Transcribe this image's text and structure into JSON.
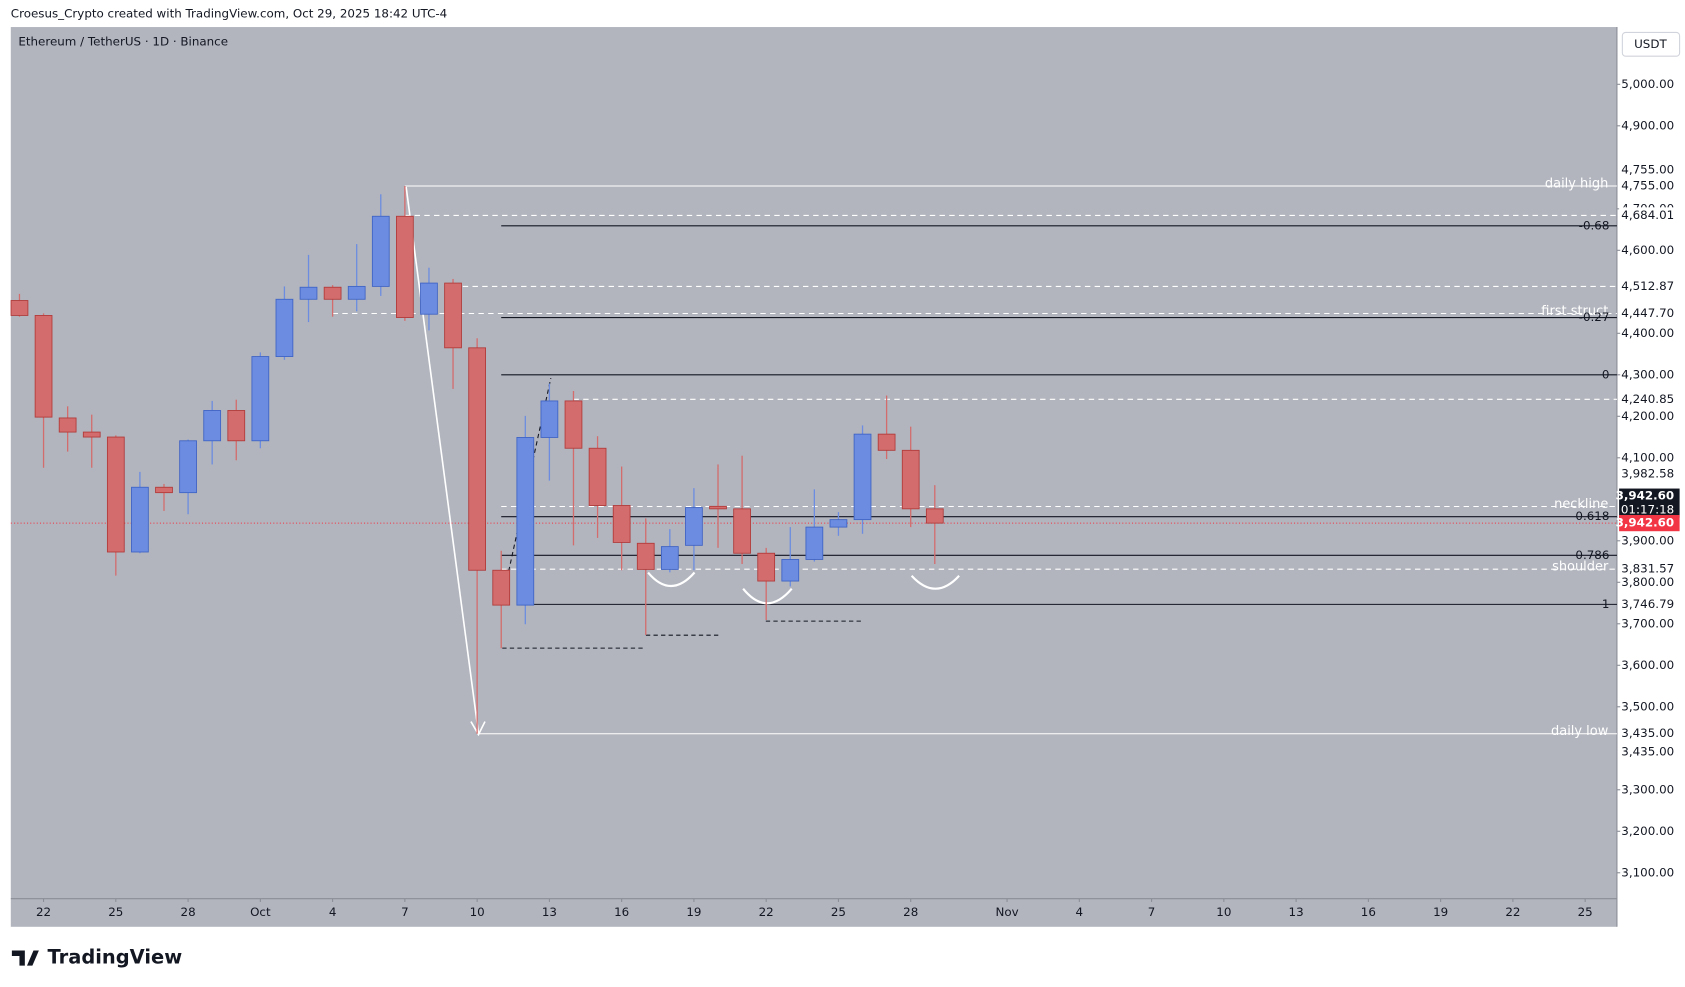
{
  "header": {
    "credit": "Croesus_Crypto created with TradingView.com, Oct 29, 2025 18:42 UTC-4",
    "symbol": "Ethereum / TetherUS · 1D · Binance",
    "currency": "USDT",
    "logo": "TradingView"
  },
  "chart_data": {
    "type": "candlestick",
    "up_color": "#6b8ce0",
    "down_color": "#d36c6c",
    "background": "#b2b5be",
    "candles": {
      "open": [
        4479,
        4443,
        4196,
        4162,
        4150,
        3873,
        4029,
        4016,
        4141,
        4214,
        4141,
        4344,
        4482,
        4511,
        4482,
        4513,
        4682,
        4446,
        4521,
        4365,
        3829,
        3745,
        4149,
        4237,
        4123,
        3985,
        3894,
        3831,
        3889,
        3983,
        3977,
        3870,
        3803,
        3855,
        3933,
        3951,
        4157,
        4118,
        3977
      ],
      "high": [
        4495,
        4448,
        4224,
        4204,
        4154,
        4066,
        4037,
        4144,
        4237,
        4240,
        4354,
        4513,
        4589,
        4516,
        4615,
        4735,
        4755,
        4558,
        4531,
        4388,
        3876,
        4201,
        4279,
        4261,
        4152,
        4079,
        3954,
        3928,
        4027,
        4084,
        4105,
        3883,
        3933,
        4024,
        3969,
        4178,
        4250,
        4175,
        4034
      ],
      "low": [
        4440,
        4076,
        4115,
        4076,
        3816,
        3870,
        3972,
        3964,
        4084,
        4094,
        4123,
        4336,
        4427,
        4440,
        4453,
        4490,
        4430,
        4407,
        4266,
        3435,
        3641,
        3699,
        4045,
        3889,
        3907,
        3829,
        3673,
        3824,
        3829,
        3883,
        3844,
        3709,
        3790,
        3850,
        3912,
        3917,
        4097,
        3933,
        3844
      ],
      "close": [
        4443,
        4198,
        4162,
        4150,
        3873,
        4029,
        4016,
        4141,
        4214,
        4141,
        4344,
        4482,
        4511,
        4482,
        4513,
        4682,
        4438,
        4521,
        4365,
        3829,
        3745,
        4149,
        4237,
        4123,
        3985,
        3896,
        3831,
        3886,
        3980,
        3977,
        3870,
        3803,
        3855,
        3933,
        3951,
        4157,
        4118,
        3977,
        3942.6
      ]
    },
    "xlim": [
      -0.36,
      66.32
    ],
    "xticks": [
      {
        "value": 1,
        "label": "22"
      },
      {
        "value": 4,
        "label": "25"
      },
      {
        "value": 7,
        "label": "28"
      },
      {
        "value": 10,
        "label": "Oct"
      },
      {
        "value": 13,
        "label": "4"
      },
      {
        "value": 16,
        "label": "7"
      },
      {
        "value": 19,
        "label": "10"
      },
      {
        "value": 22,
        "label": "13"
      },
      {
        "value": 25,
        "label": "16"
      },
      {
        "value": 28,
        "label": "19"
      },
      {
        "value": 31,
        "label": "22"
      },
      {
        "value": 34,
        "label": "25"
      },
      {
        "value": 37,
        "label": "28"
      },
      {
        "value": 41,
        "label": "Nov"
      },
      {
        "value": 44,
        "label": "4"
      },
      {
        "value": 47,
        "label": "7"
      },
      {
        "value": 50,
        "label": "10"
      },
      {
        "value": 53,
        "label": "13"
      },
      {
        "value": 56,
        "label": "16"
      },
      {
        "value": 59,
        "label": "19"
      },
      {
        "value": 62,
        "label": "22"
      },
      {
        "value": 65,
        "label": "25"
      }
    ],
    "ylim": [
      3037.5,
      5138
    ],
    "yticks": [
      {
        "value": 5000,
        "label": "5,000.00"
      },
      {
        "value": 4900,
        "label": "4,900.00"
      },
      {
        "value": 4700,
        "label": "4,700.00"
      },
      {
        "value": 4600,
        "label": "4,600.00"
      },
      {
        "value": 4400,
        "label": "4,400.00"
      },
      {
        "value": 4300,
        "label": "4,300.00"
      },
      {
        "value": 4200,
        "label": "4,200.00"
      },
      {
        "value": 4100,
        "label": "4,100.00"
      },
      {
        "value": 3900,
        "label": "3,900.00"
      },
      {
        "value": 3800,
        "label": "3,800.00"
      },
      {
        "value": 3700,
        "label": "3,700.00"
      },
      {
        "value": 3600,
        "label": "3,600.00"
      },
      {
        "value": 3500,
        "label": "3,500.00"
      },
      {
        "value": 3300,
        "label": "3,300.00"
      },
      {
        "value": 3200,
        "label": "3,200.00"
      },
      {
        "value": 3100,
        "label": "3,100.00"
      }
    ],
    "levels": [
      {
        "label": "daily high",
        "value": 4755,
        "from": 16,
        "color": "#ffffff",
        "dashed": false
      },
      {
        "value": 4684.01,
        "from": 16,
        "color": "#ffffff",
        "dashed": true
      },
      {
        "label": "-0.68",
        "value": 4659,
        "from": 20,
        "color": "#131722",
        "dashed": false
      },
      {
        "value": 4512.87,
        "from": 18,
        "color": "#ffffff",
        "dashed": true
      },
      {
        "label": "first struct",
        "value": 4447.7,
        "from": 13,
        "color": "#ffffff",
        "dashed": true
      },
      {
        "label": "-0.27",
        "value": 4438,
        "from": 20,
        "color": "#131722",
        "dashed": false
      },
      {
        "label": "0",
        "value": 4300,
        "from": 20,
        "color": "#131722",
        "dashed": false
      },
      {
        "value": 4240.85,
        "from": 23,
        "color": "#ffffff",
        "dashed": true
      },
      {
        "label": "neckline",
        "value": 3982.58,
        "from": 20,
        "color": "#ffffff",
        "dashed": true
      },
      {
        "label": "0.618",
        "value": 3958,
        "from": 20,
        "color": "#131722",
        "dashed": false
      },
      {
        "label": "0.786",
        "value": 3865,
        "from": 20,
        "color": "#131722",
        "dashed": false
      },
      {
        "label": "shoulder",
        "value": 3831.57,
        "from": 20,
        "color": "#ffffff",
        "dashed": true
      },
      {
        "label": "1",
        "value": 3746.79,
        "from": 21,
        "color": "#131722",
        "dashed": false
      },
      {
        "label": "daily low",
        "value": 3435,
        "from": 19,
        "color": "#ffffff",
        "dashed": false
      }
    ],
    "last_price": {
      "value": 3942.6,
      "label": "3,942.60",
      "countdown": "01:17:18",
      "color": "#f23645"
    },
    "price_badges": [
      {
        "value": 4755,
        "label": "4,755.00"
      },
      {
        "value": 4755,
        "label": "4,755.00"
      },
      {
        "value": 4684.01,
        "label": "4,684.01"
      },
      {
        "value": 4512.87,
        "label": "4,512.87"
      },
      {
        "value": 4447.7,
        "label": "4,447.70"
      },
      {
        "value": 4240.85,
        "label": "4,240.85"
      },
      {
        "value": 3982.58,
        "label": "3,982.58"
      },
      {
        "value": 3831.57,
        "label": "3,831.57"
      },
      {
        "value": 3746.79,
        "label": "3,746.79"
      },
      {
        "value": 3435,
        "label": "3,435.00"
      },
      {
        "value": 3435,
        "label": "3,435.00"
      }
    ]
  }
}
